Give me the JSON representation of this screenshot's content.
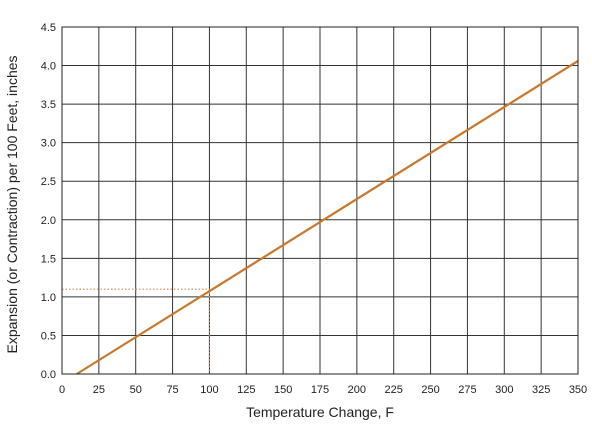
{
  "chart_data": {
    "type": "line",
    "title": "",
    "xlabel": "Temperature Change, F",
    "ylabel": "Expansion (or Contraction) per 100 Feet, inches",
    "xlim": [
      0,
      350
    ],
    "ylim": [
      0,
      4.5
    ],
    "x_ticks": [
      0,
      25,
      50,
      75,
      100,
      125,
      150,
      175,
      200,
      225,
      250,
      275,
      300,
      325,
      350
    ],
    "y_ticks": [
      "0.0",
      "0.5",
      "1.0",
      "1.5",
      "2.0",
      "2.5",
      "3.0",
      "3.5",
      "4.0",
      "4.5"
    ],
    "grid": true,
    "legend": "none",
    "series": [
      {
        "x": [
          10,
          350
        ],
        "y": [
          0.0,
          4.06
        ],
        "color": "#c8782a"
      }
    ],
    "annotations": [
      {
        "type": "reference-lines",
        "x": 100,
        "y": 1.1,
        "style": "dotted",
        "color": "#e0884a"
      }
    ]
  }
}
